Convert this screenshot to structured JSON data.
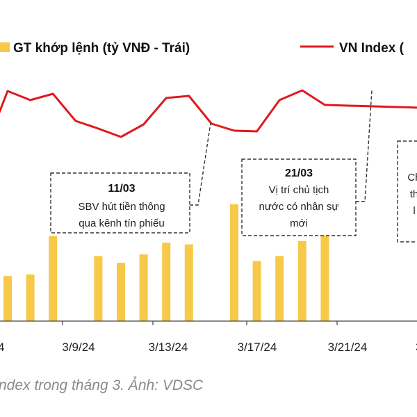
{
  "legend": {
    "bar_label": "GT khớp lệnh (tỷ VNĐ - Trái)",
    "line_label": "VN Index ("
  },
  "colors": {
    "bar": "#f7c948",
    "line": "#e0191e",
    "axis": "#444444",
    "annotation_border": "#333333"
  },
  "chart_data": {
    "type": "bar",
    "x_ticks": [
      "4",
      "3/9/24",
      "3/13/24",
      "3/17/24",
      "3/21/24",
      "3"
    ],
    "series": [
      {
        "name": "GT khớp lệnh (tỷ VNĐ - Trái)",
        "type": "bar",
        "values": [
          27,
          28,
          51,
          null,
          39,
          35,
          40,
          47,
          46,
          null,
          70,
          36,
          39,
          48,
          52
        ]
      },
      {
        "name": "VN Index (",
        "type": "line",
        "values": [
          169,
          156,
          165,
          126,
          115,
          103,
          121,
          159,
          162,
          122,
          112,
          111,
          156,
          170,
          149
        ]
      }
    ],
    "annotations": [
      {
        "title": "11/03",
        "lines": [
          "SBV hút tiền thông",
          "qua kênh tín phiếu"
        ]
      },
      {
        "title": "21/03",
        "lines": [
          "Vị trí chủ tịch",
          "nước có nhân sự",
          "mới"
        ]
      },
      {
        "title": "",
        "lines": [
          "Ch",
          "th",
          "l"
        ]
      }
    ]
  },
  "caption": "ndex trong tháng 3. Ảnh: VDSC"
}
